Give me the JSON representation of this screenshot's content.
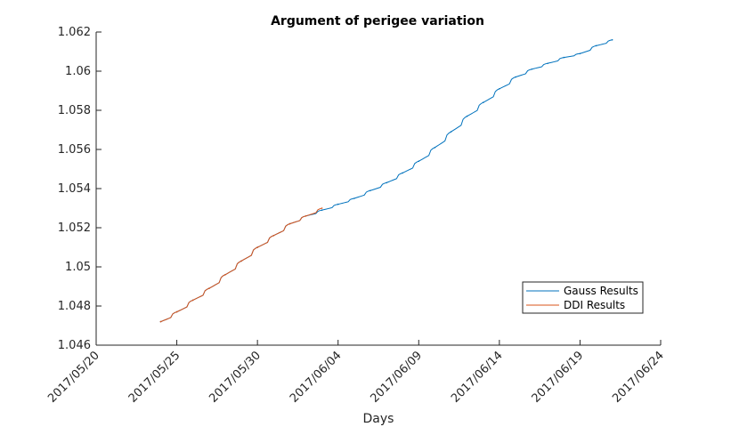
{
  "chart_data": {
    "type": "line",
    "title": "Argument of perigee variation",
    "xlabel": "Days",
    "ylabel": "",
    "x_tick_labels": [
      "2017/05/20",
      "2017/05/25",
      "2017/05/30",
      "2017/06/04",
      "2017/06/09",
      "2017/06/14",
      "2017/06/19",
      "2017/06/24"
    ],
    "y_tick_labels": [
      "1.046",
      "1.048",
      "1.05",
      "1.052",
      "1.054",
      "1.056",
      "1.058",
      "1.06",
      "1.062"
    ],
    "xlim": [
      "2017-05-20",
      "2017-06-24"
    ],
    "ylim": [
      1.046,
      1.062
    ],
    "grid": false,
    "legend_position": "bottom-right",
    "series": [
      {
        "name": "Gauss Results",
        "color": "#0072BD",
        "x": [
          "2017-05-24",
          "2017-05-25",
          "2017-05-26",
          "2017-05-27",
          "2017-05-28",
          "2017-05-29",
          "2017-05-30",
          "2017-05-31",
          "2017-06-01",
          "2017-06-02",
          "2017-06-03",
          "2017-06-04",
          "2017-06-05",
          "2017-06-06",
          "2017-06-07",
          "2017-06-08",
          "2017-06-09",
          "2017-06-10",
          "2017-06-11",
          "2017-06-12",
          "2017-06-13",
          "2017-06-14",
          "2017-06-15",
          "2017-06-16",
          "2017-06-17",
          "2017-06-18",
          "2017-06-19",
          "2017-06-20",
          "2017-06-21"
        ],
        "y": [
          1.0472,
          1.0477,
          1.0483,
          1.0489,
          1.0496,
          1.0503,
          1.051,
          1.0516,
          1.0522,
          1.0526,
          1.0529,
          1.0532,
          1.0535,
          1.0539,
          1.0543,
          1.0548,
          1.0554,
          1.0561,
          1.0569,
          1.0577,
          1.0584,
          1.0591,
          1.0597,
          1.0601,
          1.0604,
          1.0607,
          1.0609,
          1.0613,
          1.0616
        ]
      },
      {
        "name": "DDI Results",
        "color": "#D95319",
        "x": [
          "2017-05-24",
          "2017-05-25",
          "2017-05-26",
          "2017-05-27",
          "2017-05-28",
          "2017-05-29",
          "2017-05-30",
          "2017-05-31",
          "2017-06-01",
          "2017-06-02",
          "2017-06-03"
        ],
        "y": [
          1.0472,
          1.0477,
          1.0483,
          1.0489,
          1.0496,
          1.0503,
          1.051,
          1.0516,
          1.0522,
          1.0526,
          1.053
        ]
      }
    ]
  }
}
